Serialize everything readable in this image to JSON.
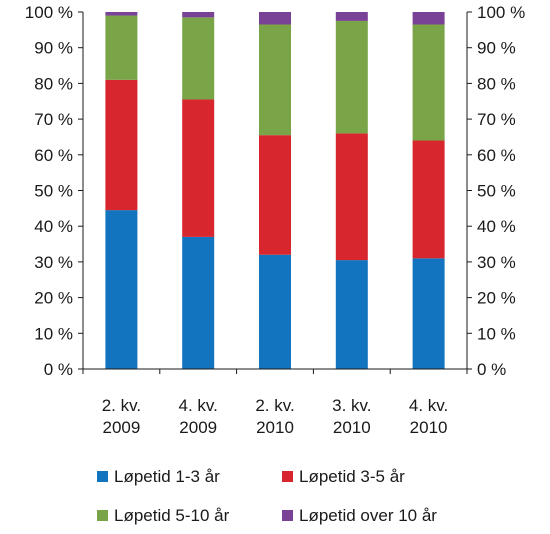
{
  "chart_data": {
    "type": "bar",
    "stacked": true,
    "normalized": true,
    "categories": [
      [
        "2. kv.",
        "2009"
      ],
      [
        "4. kv.",
        "2009"
      ],
      [
        "2. kv.",
        "2010"
      ],
      [
        "3. kv.",
        "2010"
      ],
      [
        "4. kv.",
        "2010"
      ]
    ],
    "series": [
      {
        "name": "Løpetid 1-3 år",
        "color": "#1273be",
        "values": [
          44.5,
          37,
          32,
          30.5,
          31
        ]
      },
      {
        "name": "Løpetid 3-5 år",
        "color": "#d7262d",
        "values": [
          36.5,
          38.5,
          33.5,
          35.5,
          33
        ]
      },
      {
        "name": "Løpetid 5-10 år",
        "color": "#79a447",
        "values": [
          18,
          23,
          31,
          31.5,
          32.5
        ]
      },
      {
        "name": "Løpetid over 10 år",
        "color": "#7a4296",
        "values": [
          1,
          1.5,
          3.5,
          2.5,
          3.5
        ]
      }
    ],
    "ylim": [
      0,
      100
    ],
    "yticks": [
      "0 %",
      "10 %",
      "20 %",
      "30 %",
      "40 %",
      "50 %",
      "60 %",
      "70 %",
      "80 %",
      "90 %",
      "100 %"
    ],
    "title": "",
    "xlabel": "",
    "ylabel": "",
    "grid": false,
    "legend_position": "bottom"
  }
}
